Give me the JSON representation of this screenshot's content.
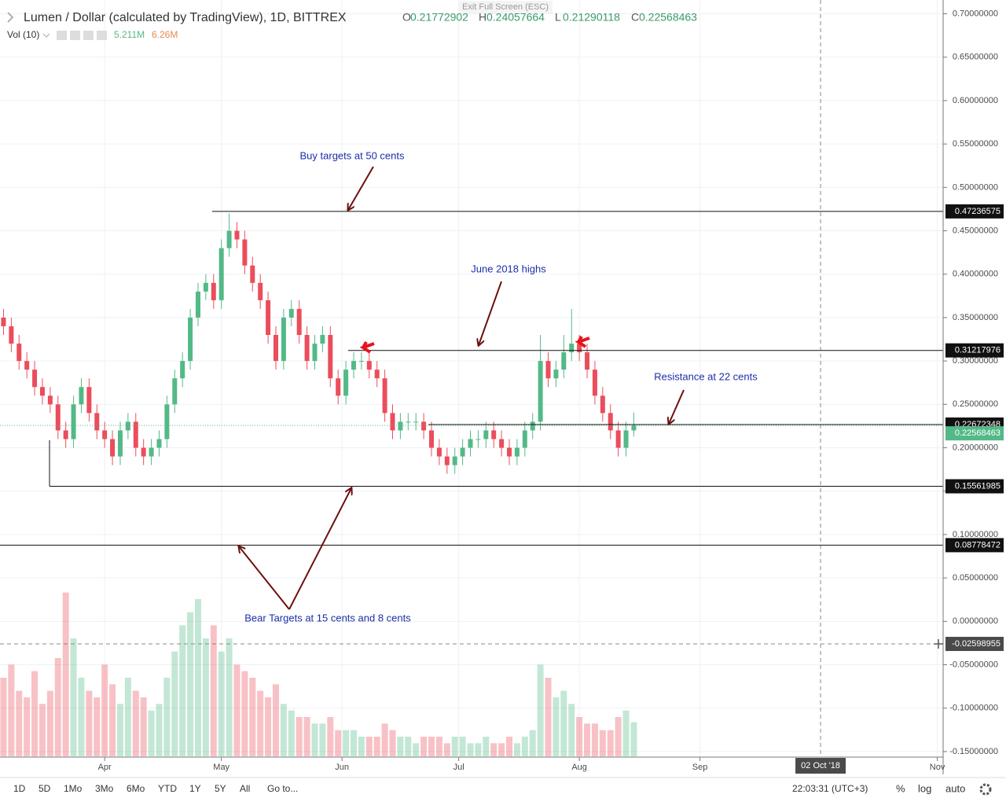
{
  "chart_data": {
    "type": "candlestick",
    "title": "Lumen / Dollar (calculated by TradingView), 1D, BITTREX",
    "ohlc": [
      {
        "label": "O",
        "value": "0.21772902"
      },
      {
        "label": "H",
        "value": "0.24057664"
      },
      {
        "label": "L",
        "value": "0.21290118"
      },
      {
        "label": "C",
        "value": "0.22568463"
      }
    ],
    "volume_title": "Vol (10)",
    "volume_readouts": [
      "5.211M",
      "6.26M"
    ],
    "up_color": "#53b987",
    "down_color": "#eb4d5c",
    "xlim": [
      -26.9,
      215.5
    ],
    "xticks": [
      {
        "value": 0,
        "label": "Apr"
      },
      {
        "value": 30,
        "label": "May"
      },
      {
        "value": 61,
        "label": "Jun"
      },
      {
        "value": 91,
        "label": "Jul"
      },
      {
        "value": 122,
        "label": "Aug"
      },
      {
        "value": 153,
        "label": "Sep"
      },
      {
        "value": 214,
        "label": "Nov"
      }
    ],
    "cursor_date": {
      "value": 184,
      "label": "02 Oct '18"
    },
    "ylim": [
      -0.1555,
      0.7159
    ],
    "yticks": [
      {
        "value": 0.7,
        "label": "0.70000000"
      },
      {
        "value": 0.65,
        "label": "0.65000000"
      },
      {
        "value": 0.6,
        "label": "0.60000000"
      },
      {
        "value": 0.55,
        "label": "0.55000000"
      },
      {
        "value": 0.5,
        "label": "0.50000000"
      },
      {
        "value": 0.45,
        "label": "0.45000000"
      },
      {
        "value": 0.4,
        "label": "0.40000000"
      },
      {
        "value": 0.35,
        "label": "0.35000000"
      },
      {
        "value": 0.3,
        "label": "0.30000000"
      },
      {
        "value": 0.25,
        "label": "0.25000000"
      },
      {
        "value": 0.2,
        "label": "0.20000000"
      },
      {
        "value": 0.15,
        "label": "0.15000000"
      },
      {
        "value": 0.1,
        "label": "0.10000000"
      },
      {
        "value": 0.05,
        "label": "0.05000000"
      },
      {
        "value": 0,
        "label": "0.00000000"
      },
      {
        "value": -0.05,
        "label": "-0.05000000"
      },
      {
        "value": -0.1,
        "label": "-0.10000000"
      },
      {
        "value": -0.15,
        "label": "-0.15000000"
      }
    ],
    "levels": [
      0.47236575,
      0.31217976,
      0.22672348,
      0.15561985,
      0.08778472
    ],
    "last_price": 0.22568463,
    "cursor_price": -0.02598955,
    "x": [
      -26,
      -24,
      -22,
      -20,
      -18,
      -16,
      -14,
      -12,
      -10,
      -8,
      -6,
      -4,
      -2,
      0,
      2,
      4,
      6,
      8,
      10,
      12,
      14,
      16,
      18,
      20,
      22,
      24,
      26,
      28,
      30,
      32,
      34,
      36,
      38,
      40,
      42,
      44,
      46,
      48,
      50,
      52,
      54,
      56,
      58,
      60,
      62,
      64,
      66,
      68,
      70,
      72,
      74,
      76,
      78,
      80,
      82,
      84,
      86,
      88,
      90,
      92,
      94,
      96,
      98,
      100,
      102,
      104,
      106,
      108,
      110,
      112,
      114,
      116,
      118,
      120,
      122,
      124,
      126,
      128,
      130,
      132,
      134,
      136
    ],
    "open": [
      0.35,
      0.34,
      0.32,
      0.3,
      0.29,
      0.27,
      0.26,
      0.25,
      0.22,
      0.21,
      0.25,
      0.27,
      0.24,
      0.22,
      0.21,
      0.19,
      0.22,
      0.23,
      0.2,
      0.19,
      0.2,
      0.21,
      0.25,
      0.28,
      0.3,
      0.35,
      0.38,
      0.39,
      0.37,
      0.43,
      0.45,
      0.44,
      0.41,
      0.39,
      0.37,
      0.33,
      0.3,
      0.35,
      0.36,
      0.33,
      0.3,
      0.32,
      0.33,
      0.28,
      0.26,
      0.29,
      0.3,
      0.3,
      0.29,
      0.28,
      0.24,
      0.22,
      0.23,
      0.23,
      0.23,
      0.22,
      0.2,
      0.19,
      0.18,
      0.19,
      0.2,
      0.21,
      0.21,
      0.22,
      0.21,
      0.2,
      0.19,
      0.2,
      0.22,
      0.23,
      0.3,
      0.28,
      0.29,
      0.31,
      0.32,
      0.31,
      0.29,
      0.26,
      0.24,
      0.22,
      0.2,
      0.22
    ],
    "high": [
      0.36,
      0.35,
      0.33,
      0.31,
      0.3,
      0.28,
      0.27,
      0.26,
      0.23,
      0.26,
      0.28,
      0.28,
      0.25,
      0.23,
      0.22,
      0.23,
      0.24,
      0.24,
      0.21,
      0.21,
      0.22,
      0.26,
      0.29,
      0.31,
      0.36,
      0.39,
      0.4,
      0.4,
      0.44,
      0.47,
      0.46,
      0.45,
      0.42,
      0.4,
      0.38,
      0.34,
      0.36,
      0.37,
      0.37,
      0.34,
      0.33,
      0.34,
      0.34,
      0.29,
      0.3,
      0.31,
      0.31,
      0.31,
      0.3,
      0.29,
      0.25,
      0.24,
      0.24,
      0.24,
      0.24,
      0.23,
      0.21,
      0.2,
      0.2,
      0.21,
      0.22,
      0.22,
      0.23,
      0.23,
      0.22,
      0.21,
      0.21,
      0.23,
      0.24,
      0.33,
      0.31,
      0.3,
      0.33,
      0.36,
      0.33,
      0.32,
      0.3,
      0.27,
      0.25,
      0.23,
      0.23,
      0.2406
    ],
    "low": [
      0.33,
      0.31,
      0.29,
      0.28,
      0.26,
      0.25,
      0.24,
      0.21,
      0.2,
      0.2,
      0.24,
      0.23,
      0.21,
      0.2,
      0.18,
      0.18,
      0.21,
      0.19,
      0.18,
      0.18,
      0.19,
      0.2,
      0.24,
      0.27,
      0.29,
      0.34,
      0.37,
      0.36,
      0.36,
      0.42,
      0.43,
      0.4,
      0.38,
      0.36,
      0.32,
      0.29,
      0.29,
      0.34,
      0.32,
      0.29,
      0.29,
      0.31,
      0.27,
      0.25,
      0.25,
      0.28,
      0.29,
      0.28,
      0.27,
      0.23,
      0.21,
      0.21,
      0.22,
      0.22,
      0.21,
      0.19,
      0.18,
      0.17,
      0.17,
      0.18,
      0.19,
      0.2,
      0.2,
      0.2,
      0.19,
      0.18,
      0.18,
      0.19,
      0.21,
      0.22,
      0.27,
      0.27,
      0.28,
      0.3,
      0.3,
      0.28,
      0.25,
      0.23,
      0.21,
      0.19,
      0.19,
      0.2129
    ],
    "close": [
      0.34,
      0.32,
      0.3,
      0.29,
      0.27,
      0.26,
      0.25,
      0.22,
      0.21,
      0.25,
      0.27,
      0.24,
      0.22,
      0.21,
      0.19,
      0.22,
      0.23,
      0.2,
      0.19,
      0.2,
      0.21,
      0.25,
      0.28,
      0.3,
      0.35,
      0.38,
      0.39,
      0.37,
      0.43,
      0.45,
      0.44,
      0.41,
      0.39,
      0.37,
      0.33,
      0.3,
      0.35,
      0.36,
      0.33,
      0.3,
      0.32,
      0.33,
      0.28,
      0.26,
      0.29,
      0.3,
      0.3,
      0.29,
      0.28,
      0.24,
      0.22,
      0.23,
      0.23,
      0.23,
      0.22,
      0.2,
      0.19,
      0.18,
      0.19,
      0.2,
      0.21,
      0.21,
      0.22,
      0.21,
      0.2,
      0.19,
      0.2,
      0.22,
      0.23,
      0.3,
      0.28,
      0.29,
      0.31,
      0.32,
      0.31,
      0.29,
      0.26,
      0.24,
      0.22,
      0.2,
      0.22,
      0.2257
    ],
    "volume": [
      12,
      14,
      10,
      9,
      13,
      8,
      10,
      15,
      25,
      18,
      12,
      10,
      9,
      14,
      11,
      8,
      12,
      10,
      9,
      7,
      8,
      12,
      16,
      20,
      22,
      24,
      18,
      20,
      16,
      18,
      14,
      13,
      12,
      10,
      9,
      11,
      8,
      7,
      6,
      6,
      5,
      5,
      6,
      4,
      4,
      4,
      3,
      3,
      3,
      5,
      4,
      3,
      3,
      2,
      3,
      3,
      3,
      2,
      3,
      3,
      2,
      2,
      3,
      2,
      2,
      3,
      2,
      3,
      4,
      14,
      12,
      9,
      10,
      8,
      6,
      5,
      5,
      4,
      4,
      6,
      7,
      5.211
    ],
    "volume_ylim": [
      0,
      30
    ],
    "annotations": [
      "Buy targets at 50 cents",
      "June 2018 highs",
      "Resistance at 22 cents",
      "Bear Targets at 15 cents and 8 cents"
    ]
  },
  "exit_fullscreen": "Exit Full Screen (ESC)",
  "toolbar": {
    "ranges": [
      "1D",
      "5D",
      "1Mo",
      "3Mo",
      "6Mo",
      "YTD",
      "1Y",
      "5Y",
      "All"
    ],
    "goto": "Go to...",
    "clock": "22:03:31 (UTC+3)",
    "options": [
      "%",
      "log",
      "auto"
    ]
  }
}
